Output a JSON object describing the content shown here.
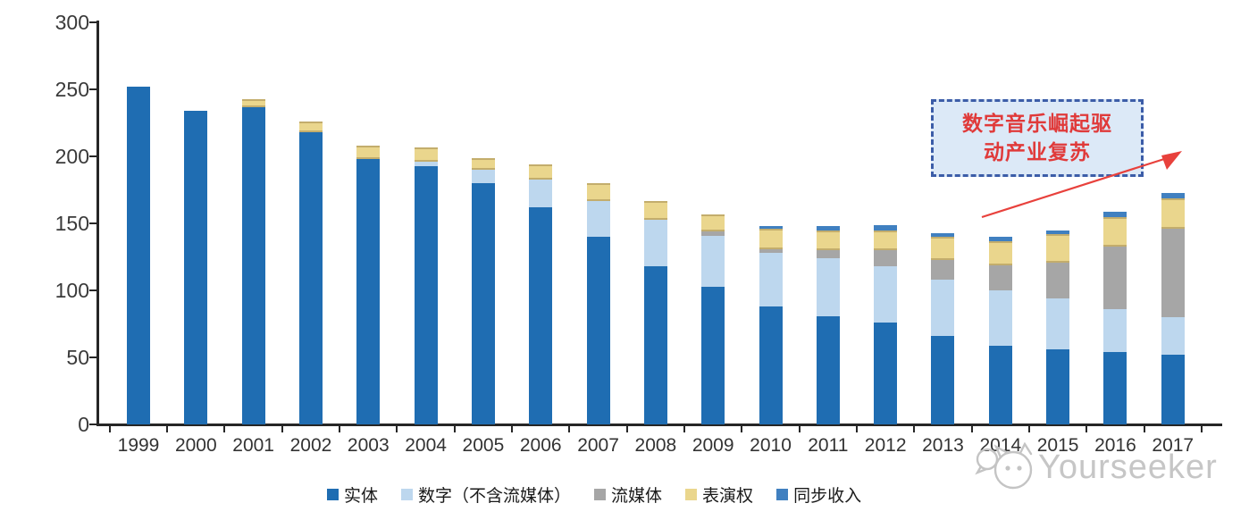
{
  "chart_data": {
    "type": "bar",
    "stacked": true,
    "title": "",
    "xlabel": "",
    "ylabel": "",
    "categories": [
      "1999",
      "2000",
      "2001",
      "2002",
      "2003",
      "2004",
      "2005",
      "2006",
      "2007",
      "2008",
      "2009",
      "2010",
      "2011",
      "2012",
      "2013",
      "2014",
      "2015",
      "2016",
      "2017"
    ],
    "series": [
      {
        "name": "实体",
        "color": "#1F6DB2",
        "values": [
          252,
          234,
          237,
          218,
          198,
          193,
          180,
          162,
          140,
          118,
          103,
          88,
          81,
          76,
          66,
          59,
          56,
          54,
          52
        ]
      },
      {
        "name": "数字（不含流媒体）",
        "color": "#BDD7EE",
        "values": [
          0,
          0,
          0,
          0,
          0,
          3,
          10,
          21,
          27,
          35,
          38,
          40,
          43,
          42,
          42,
          41,
          38,
          32,
          28
        ]
      },
      {
        "name": "流媒体",
        "color": "#A6A6A6",
        "values": [
          0,
          0,
          0,
          0,
          0,
          0,
          0,
          0,
          0,
          0,
          3,
          3,
          6,
          12,
          15,
          19,
          27,
          47,
          66
        ]
      },
      {
        "name": "表演权",
        "color": "#EAD68D",
        "values": [
          0,
          0,
          6,
          8,
          10,
          11,
          9,
          11,
          13,
          14,
          13,
          15,
          15,
          15,
          17,
          18,
          21,
          22,
          23
        ]
      },
      {
        "name": "同步收入",
        "color": "#4080C0",
        "values": [
          0,
          0,
          0,
          0,
          0,
          0,
          0,
          0,
          0,
          0,
          0,
          2,
          3,
          4,
          3,
          3,
          3,
          4,
          4
        ]
      }
    ],
    "ylim": [
      0,
      300
    ],
    "yticks": [
      0,
      50,
      100,
      150,
      200,
      250,
      300
    ],
    "grid": false,
    "legend_position": "bottom"
  },
  "annotation": {
    "line1": "数字音乐崛起驱",
    "line2": "动产业复苏",
    "box_fill": "#DCE9F7",
    "box_border": "#3C5DA8",
    "text_color": "#E03A3A",
    "arrow_color": "#E8413C"
  },
  "watermark": {
    "text": "Yourseeker",
    "logo": "cat-face-chat-icon",
    "color": "#C6C6C6"
  },
  "axis": {
    "line_color": "#262626",
    "label_color": "#3A3A3A"
  }
}
